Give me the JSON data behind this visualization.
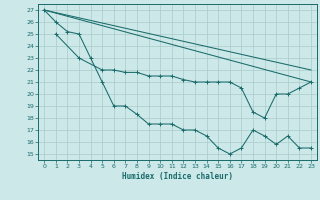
{
  "title": "",
  "xlabel": "Humidex (Indice chaleur)",
  "bg_color": "#cce8e8",
  "grid_color": "#aacccc",
  "line_color": "#1a6b6b",
  "xlim": [
    -0.5,
    23.5
  ],
  "ylim": [
    14.5,
    27.5
  ],
  "xticks": [
    0,
    1,
    2,
    3,
    4,
    5,
    6,
    7,
    8,
    9,
    10,
    11,
    12,
    13,
    14,
    15,
    16,
    17,
    18,
    19,
    20,
    21,
    22,
    23
  ],
  "yticks": [
    15,
    16,
    17,
    18,
    19,
    20,
    21,
    22,
    23,
    24,
    25,
    26,
    27
  ],
  "line1_x": [
    0,
    1,
    2,
    3,
    4,
    5,
    6,
    7,
    8,
    9,
    10,
    11,
    12,
    13,
    14,
    15,
    16,
    17,
    18,
    19,
    20,
    21,
    22,
    23
  ],
  "line1_y": [
    27,
    26,
    25.2,
    25,
    23,
    21,
    19,
    19,
    18.3,
    17.5,
    17.5,
    17.5,
    17,
    17,
    16.5,
    15.5,
    15,
    15.5,
    17,
    16.5,
    15.8,
    16.5,
    15.5,
    15.5
  ],
  "line2_x": [
    0,
    23
  ],
  "line2_y": [
    27,
    22
  ],
  "line3_x": [
    0,
    23
  ],
  "line3_y": [
    27,
    21
  ],
  "line4_x": [
    1,
    3,
    5,
    6,
    7,
    8,
    9,
    10,
    11,
    12,
    13,
    14,
    15,
    16,
    17,
    18,
    19,
    20,
    21,
    22,
    23
  ],
  "line4_y": [
    25,
    23,
    22,
    22,
    21.8,
    21.8,
    21.5,
    21.5,
    21.5,
    21.2,
    21,
    21,
    21,
    21,
    20.5,
    18.5,
    18,
    20,
    20,
    20.5,
    21
  ]
}
